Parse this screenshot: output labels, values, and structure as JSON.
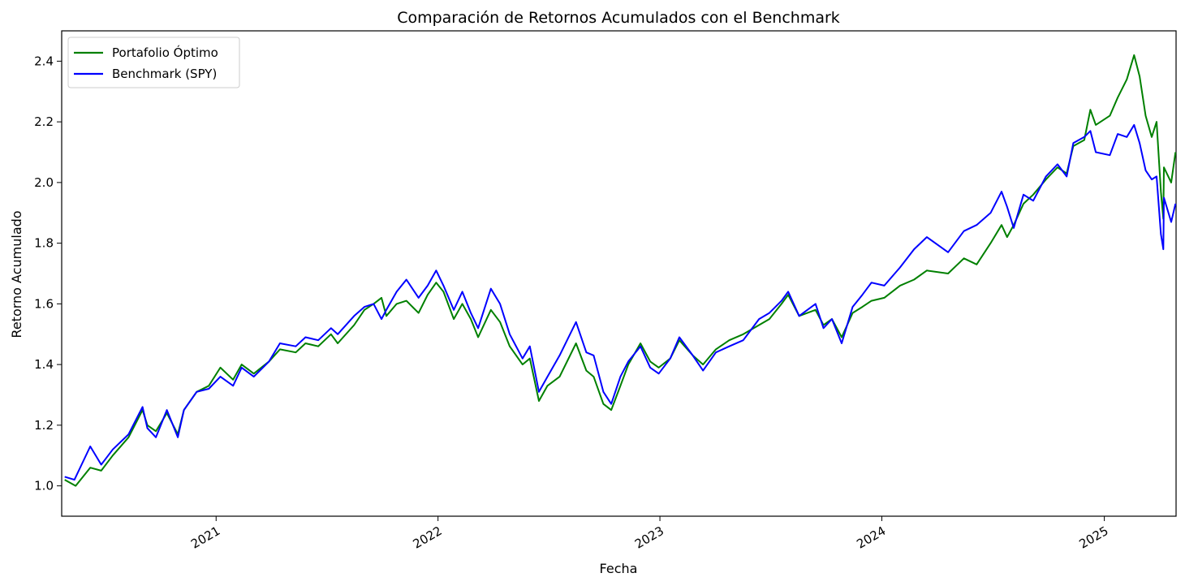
{
  "chart_data": {
    "type": "line",
    "title": "Comparación de Retornos Acumulados con el Benchmark",
    "xlabel": "Fecha",
    "ylabel": "Retorno Acumulado",
    "xlim": [
      "2020-04-22",
      "2025-04-29"
    ],
    "ylim": [
      0.9,
      2.5
    ],
    "grid": false,
    "legend": "upper-left",
    "x_ticks": [
      {
        "date": "2021-01-01",
        "label": "2021"
      },
      {
        "date": "2022-01-01",
        "label": "2022"
      },
      {
        "date": "2023-01-01",
        "label": "2023"
      },
      {
        "date": "2024-01-01",
        "label": "2024"
      },
      {
        "date": "2025-01-01",
        "label": "2025"
      }
    ],
    "y_ticks": [
      {
        "value": 1.0,
        "label": "1.0"
      },
      {
        "value": 1.2,
        "label": "1.2"
      },
      {
        "value": 1.4,
        "label": "1.4"
      },
      {
        "value": 1.6,
        "label": "1.6"
      },
      {
        "value": 1.8,
        "label": "1.8"
      },
      {
        "value": 2.0,
        "label": "2.0"
      },
      {
        "value": 2.2,
        "label": "2.2"
      },
      {
        "value": 2.4,
        "label": "2.4"
      }
    ],
    "series": [
      {
        "name": "Portafolio Óptimo",
        "color": "#008000",
        "points": [
          [
            "2020-04-27",
            1.02
          ],
          [
            "2020-05-15",
            1.0
          ],
          [
            "2020-06-08",
            1.06
          ],
          [
            "2020-06-26",
            1.05
          ],
          [
            "2020-07-15",
            1.1
          ],
          [
            "2020-08-10",
            1.16
          ],
          [
            "2020-09-02",
            1.25
          ],
          [
            "2020-09-10",
            1.2
          ],
          [
            "2020-09-24",
            1.18
          ],
          [
            "2020-10-12",
            1.24
          ],
          [
            "2020-10-30",
            1.17
          ],
          [
            "2020-11-09",
            1.25
          ],
          [
            "2020-11-30",
            1.31
          ],
          [
            "2020-12-20",
            1.33
          ],
          [
            "2021-01-08",
            1.39
          ],
          [
            "2021-01-29",
            1.35
          ],
          [
            "2021-02-12",
            1.4
          ],
          [
            "2021-03-04",
            1.37
          ],
          [
            "2021-03-29",
            1.41
          ],
          [
            "2021-04-16",
            1.45
          ],
          [
            "2021-05-12",
            1.44
          ],
          [
            "2021-05-28",
            1.47
          ],
          [
            "2021-06-18",
            1.46
          ],
          [
            "2021-07-09",
            1.5
          ],
          [
            "2021-07-20",
            1.47
          ],
          [
            "2021-08-16",
            1.53
          ],
          [
            "2021-09-02",
            1.58
          ],
          [
            "2021-09-17",
            1.6
          ],
          [
            "2021-09-30",
            1.62
          ],
          [
            "2021-10-08",
            1.56
          ],
          [
            "2021-10-25",
            1.6
          ],
          [
            "2021-11-10",
            1.61
          ],
          [
            "2021-11-30",
            1.57
          ],
          [
            "2021-12-15",
            1.63
          ],
          [
            "2021-12-29",
            1.67
          ],
          [
            "2022-01-10",
            1.64
          ],
          [
            "2022-01-27",
            1.55
          ],
          [
            "2022-02-10",
            1.6
          ],
          [
            "2022-02-24",
            1.55
          ],
          [
            "2022-03-08",
            1.49
          ],
          [
            "2022-03-29",
            1.58
          ],
          [
            "2022-04-13",
            1.54
          ],
          [
            "2022-04-29",
            1.46
          ],
          [
            "2022-05-20",
            1.4
          ],
          [
            "2022-06-01",
            1.42
          ],
          [
            "2022-06-16",
            1.28
          ],
          [
            "2022-06-30",
            1.33
          ],
          [
            "2022-07-20",
            1.36
          ],
          [
            "2022-08-16",
            1.47
          ],
          [
            "2022-09-02",
            1.38
          ],
          [
            "2022-09-14",
            1.36
          ],
          [
            "2022-09-30",
            1.27
          ],
          [
            "2022-10-13",
            1.25
          ],
          [
            "2022-10-28",
            1.33
          ],
          [
            "2022-11-10",
            1.4
          ],
          [
            "2022-11-30",
            1.47
          ],
          [
            "2022-12-16",
            1.41
          ],
          [
            "2022-12-30",
            1.39
          ],
          [
            "2023-01-18",
            1.42
          ],
          [
            "2023-02-02",
            1.48
          ],
          [
            "2023-02-24",
            1.43
          ],
          [
            "2023-03-13",
            1.4
          ],
          [
            "2023-04-03",
            1.45
          ],
          [
            "2023-04-25",
            1.48
          ],
          [
            "2023-05-18",
            1.5
          ],
          [
            "2023-06-13",
            1.53
          ],
          [
            "2023-06-30",
            1.55
          ],
          [
            "2023-07-20",
            1.6
          ],
          [
            "2023-07-31",
            1.63
          ],
          [
            "2023-08-18",
            1.56
          ],
          [
            "2023-09-14",
            1.58
          ],
          [
            "2023-09-27",
            1.53
          ],
          [
            "2023-10-11",
            1.55
          ],
          [
            "2023-10-27",
            1.49
          ],
          [
            "2023-11-14",
            1.57
          ],
          [
            "2023-11-30",
            1.59
          ],
          [
            "2023-12-15",
            1.61
          ],
          [
            "2024-01-05",
            1.62
          ],
          [
            "2024-01-31",
            1.66
          ],
          [
            "2024-02-23",
            1.68
          ],
          [
            "2024-03-15",
            1.71
          ],
          [
            "2024-04-19",
            1.7
          ],
          [
            "2024-05-15",
            1.75
          ],
          [
            "2024-06-05",
            1.73
          ],
          [
            "2024-06-28",
            1.8
          ],
          [
            "2024-07-16",
            1.86
          ],
          [
            "2024-07-25",
            1.82
          ],
          [
            "2024-08-05",
            1.86
          ],
          [
            "2024-08-21",
            1.93
          ],
          [
            "2024-09-06",
            1.96
          ],
          [
            "2024-09-27",
            2.01
          ],
          [
            "2024-10-16",
            2.05
          ],
          [
            "2024-10-31",
            2.03
          ],
          [
            "2024-11-11",
            2.12
          ],
          [
            "2024-11-29",
            2.14
          ],
          [
            "2024-12-09",
            2.24
          ],
          [
            "2024-12-18",
            2.19
          ],
          [
            "2025-01-10",
            2.22
          ],
          [
            "2025-01-23",
            2.28
          ],
          [
            "2025-02-07",
            2.34
          ],
          [
            "2025-02-19",
            2.42
          ],
          [
            "2025-02-28",
            2.35
          ],
          [
            "2025-03-10",
            2.22
          ],
          [
            "2025-03-20",
            2.15
          ],
          [
            "2025-03-28",
            2.2
          ],
          [
            "2025-04-04",
            1.97
          ],
          [
            "2025-04-08",
            1.88
          ],
          [
            "2025-04-09",
            2.05
          ],
          [
            "2025-04-21",
            2.0
          ],
          [
            "2025-04-28",
            2.1
          ]
        ]
      },
      {
        "name": "Benchmark (SPY)",
        "color": "#0000ff",
        "points": [
          [
            "2020-04-27",
            1.03
          ],
          [
            "2020-05-13",
            1.02
          ],
          [
            "2020-06-08",
            1.13
          ],
          [
            "2020-06-26",
            1.07
          ],
          [
            "2020-07-15",
            1.12
          ],
          [
            "2020-08-10",
            1.17
          ],
          [
            "2020-09-02",
            1.26
          ],
          [
            "2020-09-10",
            1.19
          ],
          [
            "2020-09-24",
            1.16
          ],
          [
            "2020-10-12",
            1.25
          ],
          [
            "2020-10-30",
            1.16
          ],
          [
            "2020-11-09",
            1.25
          ],
          [
            "2020-11-30",
            1.31
          ],
          [
            "2020-12-20",
            1.32
          ],
          [
            "2021-01-08",
            1.36
          ],
          [
            "2021-01-29",
            1.33
          ],
          [
            "2021-02-12",
            1.39
          ],
          [
            "2021-03-04",
            1.36
          ],
          [
            "2021-03-29",
            1.41
          ],
          [
            "2021-04-16",
            1.47
          ],
          [
            "2021-05-12",
            1.46
          ],
          [
            "2021-05-28",
            1.49
          ],
          [
            "2021-06-18",
            1.48
          ],
          [
            "2021-07-09",
            1.52
          ],
          [
            "2021-07-20",
            1.5
          ],
          [
            "2021-08-16",
            1.56
          ],
          [
            "2021-09-02",
            1.59
          ],
          [
            "2021-09-17",
            1.6
          ],
          [
            "2021-09-30",
            1.55
          ],
          [
            "2021-10-08",
            1.58
          ],
          [
            "2021-10-25",
            1.64
          ],
          [
            "2021-11-10",
            1.68
          ],
          [
            "2021-11-30",
            1.62
          ],
          [
            "2021-12-15",
            1.66
          ],
          [
            "2021-12-29",
            1.71
          ],
          [
            "2022-01-10",
            1.66
          ],
          [
            "2022-01-27",
            1.58
          ],
          [
            "2022-02-10",
            1.64
          ],
          [
            "2022-02-24",
            1.57
          ],
          [
            "2022-03-08",
            1.52
          ],
          [
            "2022-03-29",
            1.65
          ],
          [
            "2022-04-13",
            1.6
          ],
          [
            "2022-04-29",
            1.5
          ],
          [
            "2022-05-20",
            1.42
          ],
          [
            "2022-06-01",
            1.46
          ],
          [
            "2022-06-16",
            1.31
          ],
          [
            "2022-06-30",
            1.36
          ],
          [
            "2022-07-20",
            1.43
          ],
          [
            "2022-08-16",
            1.54
          ],
          [
            "2022-09-02",
            1.44
          ],
          [
            "2022-09-14",
            1.43
          ],
          [
            "2022-09-30",
            1.31
          ],
          [
            "2022-10-13",
            1.27
          ],
          [
            "2022-10-28",
            1.36
          ],
          [
            "2022-11-10",
            1.41
          ],
          [
            "2022-11-30",
            1.46
          ],
          [
            "2022-12-16",
            1.39
          ],
          [
            "2022-12-30",
            1.37
          ],
          [
            "2023-01-18",
            1.42
          ],
          [
            "2023-02-02",
            1.49
          ],
          [
            "2023-02-24",
            1.43
          ],
          [
            "2023-03-13",
            1.38
          ],
          [
            "2023-04-03",
            1.44
          ],
          [
            "2023-04-25",
            1.46
          ],
          [
            "2023-05-18",
            1.48
          ],
          [
            "2023-06-13",
            1.55
          ],
          [
            "2023-06-30",
            1.57
          ],
          [
            "2023-07-20",
            1.61
          ],
          [
            "2023-07-31",
            1.64
          ],
          [
            "2023-08-18",
            1.56
          ],
          [
            "2023-09-14",
            1.6
          ],
          [
            "2023-09-27",
            1.52
          ],
          [
            "2023-10-11",
            1.55
          ],
          [
            "2023-10-27",
            1.47
          ],
          [
            "2023-11-14",
            1.59
          ],
          [
            "2023-11-30",
            1.63
          ],
          [
            "2023-12-15",
            1.67
          ],
          [
            "2024-01-05",
            1.66
          ],
          [
            "2024-01-31",
            1.72
          ],
          [
            "2024-02-23",
            1.78
          ],
          [
            "2024-03-15",
            1.82
          ],
          [
            "2024-04-19",
            1.77
          ],
          [
            "2024-05-15",
            1.84
          ],
          [
            "2024-06-05",
            1.86
          ],
          [
            "2024-06-28",
            1.9
          ],
          [
            "2024-07-16",
            1.97
          ],
          [
            "2024-07-25",
            1.92
          ],
          [
            "2024-08-05",
            1.85
          ],
          [
            "2024-08-21",
            1.96
          ],
          [
            "2024-09-06",
            1.94
          ],
          [
            "2024-09-27",
            2.02
          ],
          [
            "2024-10-16",
            2.06
          ],
          [
            "2024-10-31",
            2.02
          ],
          [
            "2024-11-11",
            2.13
          ],
          [
            "2024-11-29",
            2.15
          ],
          [
            "2024-12-09",
            2.17
          ],
          [
            "2024-12-18",
            2.1
          ],
          [
            "2025-01-10",
            2.09
          ],
          [
            "2025-01-23",
            2.16
          ],
          [
            "2025-02-07",
            2.15
          ],
          [
            "2025-02-19",
            2.19
          ],
          [
            "2025-02-28",
            2.13
          ],
          [
            "2025-03-10",
            2.04
          ],
          [
            "2025-03-20",
            2.01
          ],
          [
            "2025-03-28",
            2.02
          ],
          [
            "2025-04-04",
            1.83
          ],
          [
            "2025-04-08",
            1.78
          ],
          [
            "2025-04-09",
            1.95
          ],
          [
            "2025-04-21",
            1.87
          ],
          [
            "2025-04-28",
            1.93
          ]
        ]
      }
    ]
  }
}
